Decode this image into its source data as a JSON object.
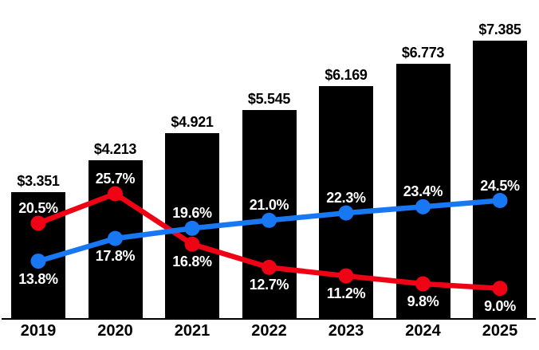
{
  "chart_data": {
    "type": "bar",
    "subtype": "bars-with-two-line-overlays",
    "title": "",
    "categories": [
      "2019",
      "2020",
      "2021",
      "2022",
      "2023",
      "2024",
      "2025"
    ],
    "bars": {
      "name": "dollar-value-bars",
      "values": [
        3.351,
        4.213,
        4.921,
        5.545,
        6.169,
        6.773,
        7.385
      ],
      "labels": [
        "$3.351",
        "$4.213",
        "$4.921",
        "$5.545",
        "$6.169",
        "$6.773",
        "$7.385"
      ],
      "color": "#000000",
      "label_color": "#000000"
    },
    "series": [
      {
        "name": "red-percentage-line",
        "type": "line",
        "color": "#ee0213",
        "values": [
          20.5,
          25.7,
          16.8,
          12.7,
          11.2,
          9.8,
          9.0
        ],
        "labels": [
          "20.5%",
          "25.7%",
          "16.8%",
          "12.7%",
          "11.2%",
          "9.8%",
          "9.0%"
        ],
        "label_positions": [
          "above",
          "above",
          "below",
          "below",
          "below",
          "below",
          "below"
        ],
        "label_color": "#ffffff"
      },
      {
        "name": "blue-percentage-line",
        "type": "line",
        "color": "#1877f2",
        "values": [
          13.8,
          17.8,
          19.6,
          21.0,
          22.3,
          23.4,
          24.5
        ],
        "labels": [
          "13.8%",
          "17.8%",
          "19.6%",
          "21.0%",
          "22.3%",
          "23.4%",
          "24.5%"
        ],
        "label_positions": [
          "below",
          "below",
          "above",
          "above",
          "above",
          "above",
          "above"
        ],
        "label_color": "#ffffff"
      }
    ],
    "axes": {
      "x_axis_line_color": "#000000",
      "y_axis_visible": false
    },
    "legend": {
      "visible": false
    },
    "grid": false,
    "background": "#ffffff"
  }
}
